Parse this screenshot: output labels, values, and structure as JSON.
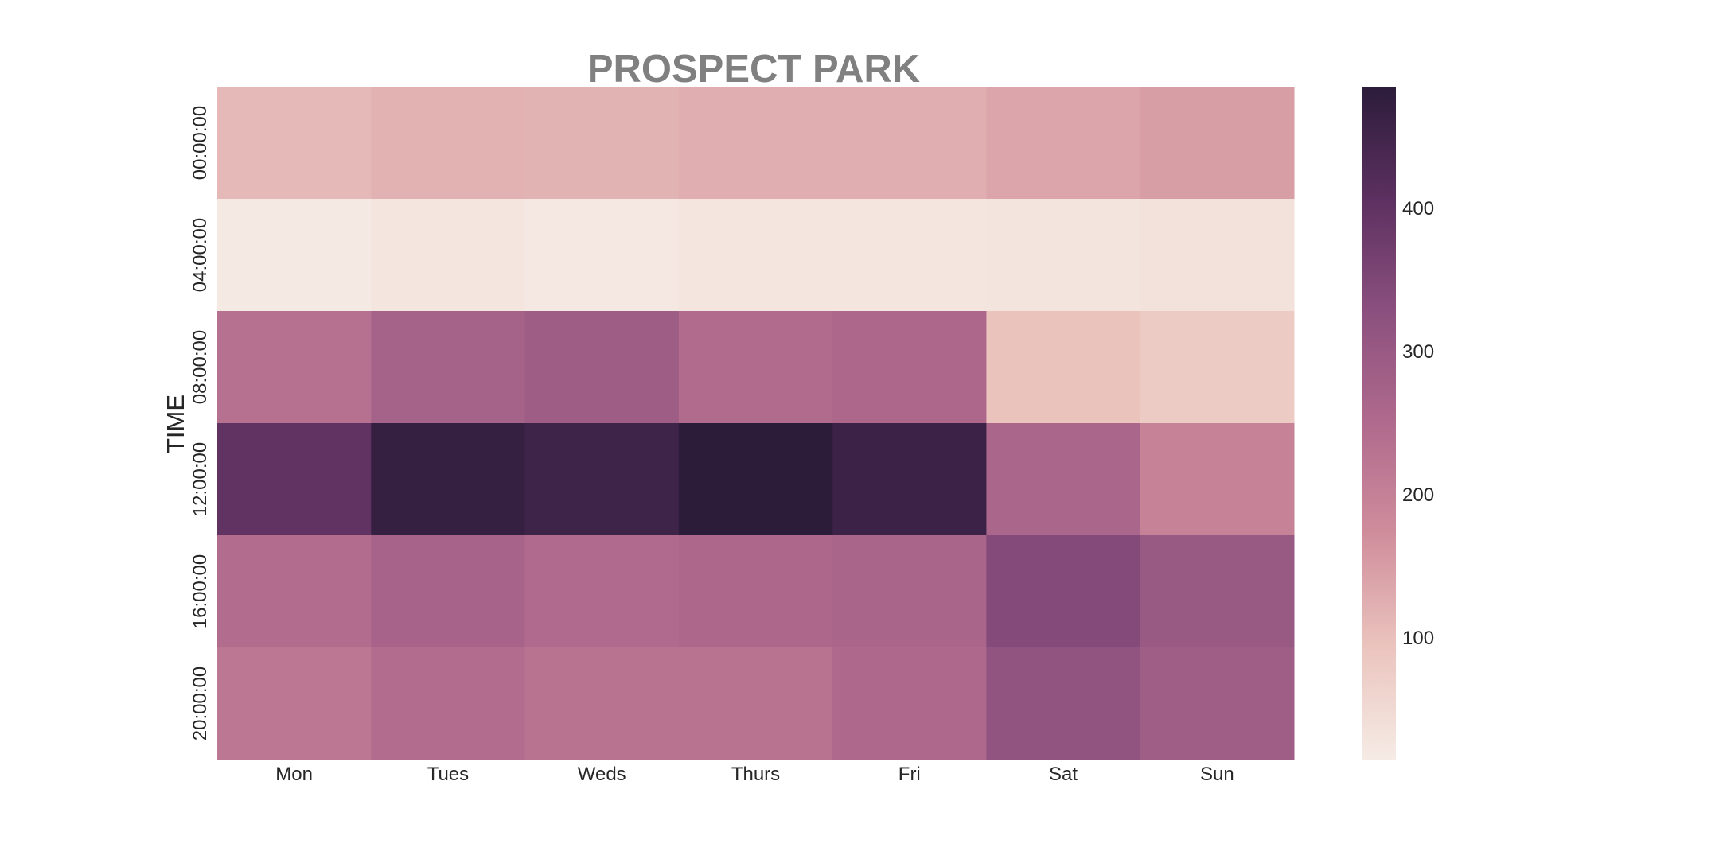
{
  "chart_data": {
    "type": "heatmap",
    "title": "PROSPECT PARK",
    "xlabel": "",
    "ylabel": "TIME",
    "x_categories": [
      "Mon",
      "Tues",
      "Weds",
      "Thurs",
      "Fri",
      "Sat",
      "Sun"
    ],
    "y_categories": [
      "00:00:00",
      "04:00:00",
      "08:00:00",
      "12:00:00",
      "16:00:00",
      "20:00:00"
    ],
    "values": [
      [
        110,
        120,
        118,
        125,
        125,
        138,
        148
      ],
      [
        20,
        28,
        22,
        27,
        27,
        30,
        35
      ],
      [
        235,
        272,
        290,
        248,
        258,
        95,
        80
      ],
      [
        400,
        470,
        455,
        485,
        460,
        262,
        195
      ],
      [
        245,
        270,
        250,
        258,
        265,
        340,
        300
      ],
      [
        220,
        245,
        230,
        230,
        255,
        315,
        285
      ]
    ],
    "colorbar": {
      "min": 15,
      "max": 485,
      "ticks": [
        100,
        200,
        300,
        400
      ],
      "stops": [
        "#f6ebe5",
        "#ebc4be",
        "#d08e9c",
        "#b06a8d",
        "#8b507e",
        "#5c3060",
        "#2c1c3a"
      ]
    }
  }
}
